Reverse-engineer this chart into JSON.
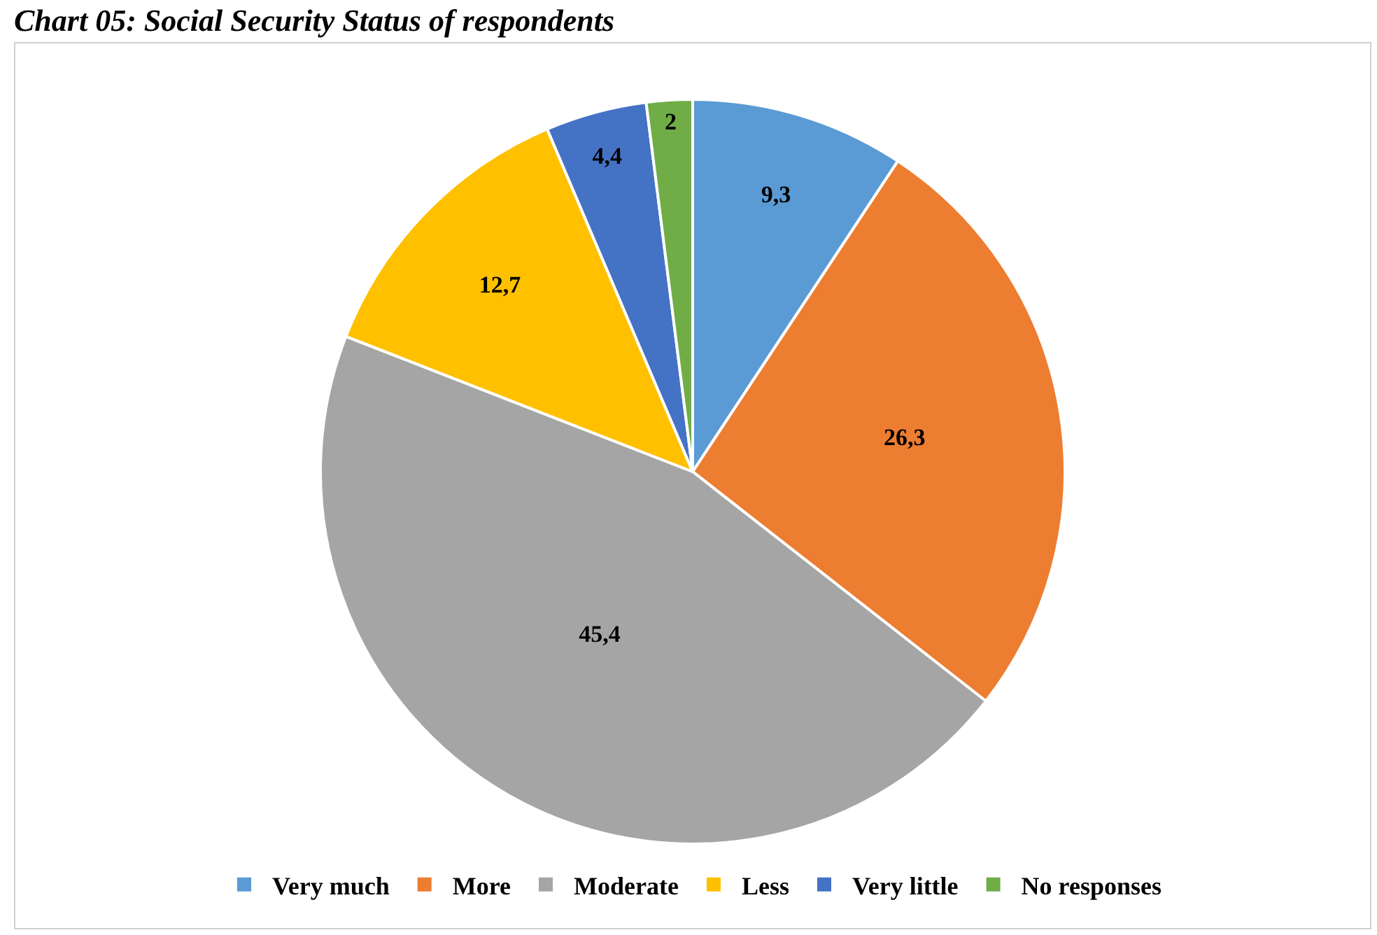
{
  "chart_data": {
    "type": "pie",
    "title": "Chart 05: Social Security Status of respondents",
    "categories": [
      "Very much",
      "More",
      "Moderate",
      "Less",
      "Very little",
      "No responses"
    ],
    "values": [
      9.3,
      26.3,
      45.4,
      12.7,
      4.4,
      2
    ],
    "value_labels": [
      "9,3",
      "26,3",
      "45,4",
      "12,7",
      "4,4",
      "2"
    ],
    "colors": [
      "#5b9bd5",
      "#ed7d31",
      "#a5a5a5",
      "#ffc000",
      "#4472c4",
      "#70ad47"
    ],
    "legend": "bottom"
  }
}
